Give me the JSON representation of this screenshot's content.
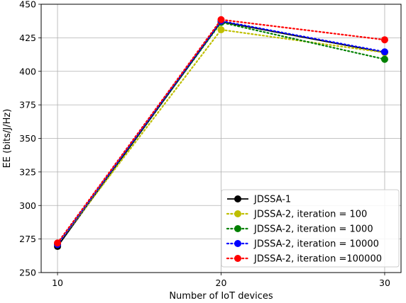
{
  "chart_data": {
    "type": "line",
    "x": [
      10,
      20,
      30
    ],
    "xlabel": "Number of IoT devices",
    "ylabel": "EE (bits/J/Hz)",
    "xlim": [
      9,
      31
    ],
    "ylim": [
      250,
      450
    ],
    "xticks": [
      10,
      20,
      30
    ],
    "yticks": [
      250,
      275,
      300,
      325,
      350,
      375,
      400,
      425,
      450
    ],
    "grid": true,
    "legend_position": "lower-right",
    "series": [
      {
        "name": "JDSSA-1",
        "values": [
          269.5,
          437,
          414
        ],
        "color": "#000000",
        "style": "solid"
      },
      {
        "name": "JDSSA-2, iteration = 100",
        "values": [
          271,
          431,
          414
        ],
        "color": "#bfbf00",
        "style": "dotted"
      },
      {
        "name": "JDSSA-2, iteration = 1000",
        "values": [
          271,
          436.5,
          409
        ],
        "color": "#008000",
        "style": "dotted"
      },
      {
        "name": "JDSSA-2, iteration = 10000",
        "values": [
          271,
          437.5,
          414.5
        ],
        "color": "#0000ff",
        "style": "dotted"
      },
      {
        "name": "JDSSA-2, iteration =100000",
        "values": [
          272,
          438.5,
          423.5
        ],
        "color": "#ff0000",
        "style": "dotted"
      }
    ]
  }
}
